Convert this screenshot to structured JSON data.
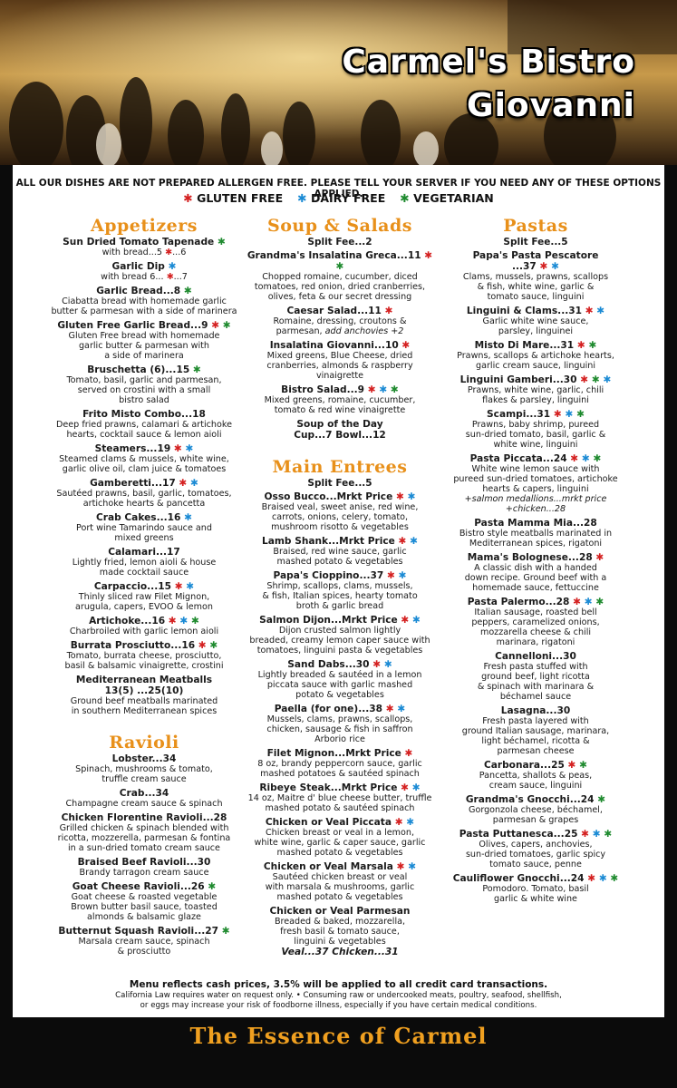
{
  "header": {
    "title_lines": [
      "Carmel's Bistro",
      "Giovanni"
    ]
  },
  "notice": "ALL OUR DISHES ARE NOT PREPARED ALLERGEN FREE. PLEASE TELL YOUR SERVER IF YOU NEED ANY OF THESE OPTIONS APPLIED.",
  "legend": [
    {
      "symbol": "✱",
      "label": "GLUTEN FREE",
      "color": "#d42020"
    },
    {
      "symbol": "✱",
      "label": "DAIRY FREE",
      "color": "#1a8ad4"
    },
    {
      "symbol": "✱",
      "label": "VEGETARIAN",
      "color": "#1e8a2e"
    }
  ],
  "columns": [
    {
      "sections": [
        {
          "heading": "Appetizers",
          "items": [
            {
              "name": "Sun Dried Tomato Tapenade",
              "diet": [
                2
              ],
              "lines": [
                [
                  "with bread...5 ",
                  {
                    "mark": 0
                  },
                  "...6"
                ]
              ]
            },
            {
              "name": "Garlic Dip",
              "diet": [
                1
              ],
              "lines": [
                [
                  "with bread 6... ",
                  {
                    "mark": 0
                  },
                  "...7"
                ]
              ]
            },
            {
              "name": "Garlic Bread...8",
              "diet": [
                2
              ],
              "lines": [
                "Ciabatta bread with homemade garlic",
                "butter & parmesan with a side of marinera"
              ]
            },
            {
              "name": "Gluten Free Garlic Bread...9",
              "diet": [
                0,
                2
              ],
              "lines": [
                "Gluten Free bread with homemade",
                "garlic butter & parmesan with",
                "a side of marinera"
              ]
            },
            {
              "name": "Bruschetta (6)...15",
              "diet": [
                2
              ],
              "lines": [
                "Tomato, basil, garlic and parmesan,",
                "served on crostini with a small",
                "bistro salad"
              ]
            },
            {
              "name": "Frito Misto Combo...18",
              "lines": [
                "Deep fried prawns, calamari & artichoke",
                "hearts, cocktail sauce & lemon aioli"
              ]
            },
            {
              "name": "Steamers...19",
              "diet": [
                0,
                1
              ],
              "lines": [
                "Steamed clams & mussels, white wine,",
                "garlic olive oil, clam juice & tomatoes"
              ]
            },
            {
              "name": "Gamberetti...17",
              "diet": [
                0,
                1
              ],
              "lines": [
                "Sautéed prawns, basil, garlic, tomatoes,",
                "artichoke hearts & pancetta"
              ]
            },
            {
              "name": "Crab Cakes...16",
              "diet": [
                1
              ],
              "lines": [
                "Port wine Tamarindo sauce and",
                "mixed greens"
              ]
            },
            {
              "name": "Calamari...17",
              "lines": [
                "Lightly fried, lemon aioli & house",
                "made cocktail sauce"
              ]
            },
            {
              "name": "Carpaccio...15",
              "diet": [
                0,
                1
              ],
              "lines": [
                "Thinly sliced raw Filet Mignon,",
                "arugula, capers, EVOO & lemon"
              ]
            },
            {
              "name": "Artichoke...16",
              "diet": [
                0,
                1,
                2
              ],
              "lines": [
                "Charbroiled with garlic lemon aioli"
              ]
            },
            {
              "name": "Burrata Prosciutto...16",
              "diet": [
                0,
                2
              ],
              "lines": [
                "Tomato, burrata cheese, prosciutto,",
                "basil & balsamic vinaigrette, crostini"
              ]
            },
            {
              "name": "Mediterranean Meatballs",
              "price": "13(5) ...25(10)",
              "lines": [
                "Ground beef meatballs marinated",
                "in southern Mediterranean spices"
              ]
            }
          ]
        },
        {
          "heading": "Ravioli",
          "items": [
            {
              "name": "Lobster...34",
              "lines": [
                "Spinach, mushrooms & tomato,",
                "truffle cream sauce"
              ]
            },
            {
              "name": "Crab...34",
              "lines": [
                "Champagne cream sauce & spinach"
              ]
            },
            {
              "name": "Chicken Florentine Ravioli...28",
              "lines": [
                "Grilled chicken & spinach blended with",
                "ricotta, mozzerella, parmesan & fontina",
                "in a sun-dried tomato cream sauce"
              ]
            },
            {
              "name": "Braised Beef Ravioli...30",
              "lines": [
                "Brandy tarragon cream sauce"
              ]
            },
            {
              "name": "Goat Cheese Ravioli...26",
              "diet": [
                2
              ],
              "lines": [
                "Goat cheese & roasted vegetable",
                "Brown butter basil sauce, toasted",
                "almonds & balsamic glaze"
              ]
            },
            {
              "name": "Butternut Squash Ravioli...27",
              "diet": [
                2
              ],
              "lines": [
                "Marsala cream sauce, spinach",
                "& prosciutto"
              ]
            }
          ]
        }
      ]
    },
    {
      "sections": [
        {
          "heading": "Soup & Salads",
          "note": "Split Fee...2",
          "items": [
            {
              "name": "Grandma's Insalatina Greca...11",
              "diet": [
                0,
                2
              ],
              "lines": [
                "Chopped romaine, cucumber, diced",
                "tomatoes, red onion, dried cranberries,",
                "olives, feta & our secret dressing"
              ]
            },
            {
              "name": "Caesar Salad...11",
              "diet": [
                0
              ],
              "lines": [
                "Romaine, dressing, croutons &",
                [
                  "parmesan, ",
                  {
                    "em": "add anchovies +2"
                  }
                ]
              ]
            },
            {
              "name": "Insalatina Giovanni...10",
              "diet": [
                0
              ],
              "lines": [
                "Mixed greens, Blue Cheese, dried",
                "cranberries, almonds & raspberry",
                "vinaigrette"
              ]
            },
            {
              "name": "Bistro Salad...9",
              "diet": [
                0,
                1,
                2
              ],
              "lines": [
                "Mixed greens, romaine, cucumber,",
                "tomato & red wine vinaigrette"
              ]
            },
            {
              "name": "Soup of the Day",
              "price": "Cup...7  Bowl...12"
            }
          ]
        },
        {
          "heading": "Main Entrees",
          "note": "Split Fee...5",
          "items": [
            {
              "name": "Osso Bucco...Mrkt Price",
              "diet": [
                0,
                1
              ],
              "lines": [
                "Braised veal, sweet anise, red wine,",
                "carrots, onions, celery, tomato,",
                "mushroom risotto & vegetables"
              ]
            },
            {
              "name": "Lamb Shank...Mrkt Price",
              "diet": [
                0,
                1
              ],
              "lines": [
                "Braised, red wine sauce, garlic",
                "mashed potato & vegetables"
              ]
            },
            {
              "name": "Papa's Cioppino...37",
              "diet": [
                0,
                1
              ],
              "lines": [
                "Shrimp, scallops, clams, mussels,",
                "& fish, Italian spices, hearty tomato",
                "broth & garlic bread"
              ]
            },
            {
              "name": "Salmon Dijon...Mrkt Price",
              "diet": [
                0,
                1
              ],
              "lines": [
                "Dijon crusted salmon lightly",
                "breaded, creamy lemon caper sauce with",
                "tomatoes, linguini pasta & vegetables"
              ]
            },
            {
              "name": "Sand Dabs...30",
              "diet": [
                0,
                1
              ],
              "lines": [
                "Lightly breaded & sautéed in a lemon",
                "piccata sauce with garlic mashed",
                "potato & vegetables"
              ]
            },
            {
              "name": "Paella (for one)...38",
              "diet": [
                0,
                1
              ],
              "lines": [
                "Mussels, clams, prawns, scallops,",
                "chicken, sausage & fish in saffron",
                "Arborio rice"
              ]
            },
            {
              "name": "Filet Mignon...Mrkt Price",
              "diet": [
                0
              ],
              "lines": [
                "8 oz, brandy peppercorn sauce, garlic",
                "mashed potatoes & sautéed spinach"
              ]
            },
            {
              "name": "Ribeye Steak...Mrkt Price",
              "diet": [
                0,
                1
              ],
              "lines": [
                "14 oz, Maitre d' blue cheese butter, truffle",
                "mashed potato & sautéed spinach"
              ]
            },
            {
              "name": "Chicken or Veal Piccata",
              "diet": [
                0,
                1
              ],
              "lines": [
                "Chicken breast or veal in a lemon,",
                "white wine, garlic & caper sauce, garlic",
                "mashed potato & vegetables"
              ]
            },
            {
              "name": "Chicken or Veal Marsala",
              "diet": [
                0,
                1
              ],
              "lines": [
                "Sautéed chicken breast or veal",
                "with marsala & mushrooms, garlic",
                "mashed potato & vegetables"
              ]
            },
            {
              "name": "Chicken or Veal Parmesan",
              "lines": [
                "Breaded & baked, mozzarella,",
                "fresh basil & tomato sauce,",
                "linguini & vegetables"
              ],
              "tail": "Veal...37  Chicken...31"
            }
          ]
        }
      ]
    },
    {
      "sections": [
        {
          "heading": "Pastas",
          "note": "Split Fee...5",
          "items": [
            {
              "name": "Papa's Pasta Pescatore",
              "price": "...37",
              "diet": [
                0,
                1
              ],
              "lines": [
                "Clams, mussels, prawns, scallops",
                "& fish, white wine, garlic &",
                "tomato sauce, linguini"
              ]
            },
            {
              "name": "Linguini & Clams...31",
              "diet": [
                0,
                1
              ],
              "lines": [
                "Garlic white wine sauce,",
                "parsley, linguinei"
              ]
            },
            {
              "name": "Misto Di Mare...31",
              "diet": [
                0,
                2
              ],
              "lines": [
                "Prawns, scallops & artichoke hearts,",
                "garlic cream sauce, linguini"
              ]
            },
            {
              "name": "Linguini Gamberi...30",
              "diet": [
                0,
                2,
                1
              ],
              "lines": [
                "Prawns, white wine, garlic, chili",
                "flakes & parsley, linguini"
              ]
            },
            {
              "name": "Scampi...31",
              "diet": [
                0,
                1,
                2
              ],
              "lines": [
                "Prawns, baby shrimp, pureed",
                "sun-dried tomato, basil, garlic &",
                "white wine, linguini"
              ]
            },
            {
              "name": "Pasta Piccata...24",
              "diet": [
                0,
                1,
                2
              ],
              "lines": [
                "White wine lemon sauce with",
                "pureed sun-dried tomatoes, artichoke",
                "hearts & capers, linguini",
                [
                  {
                    "em": "+salmon medallions...mrkt price"
                  }
                ],
                [
                  {
                    "em": "+chicken...28"
                  }
                ]
              ]
            },
            {
              "name": "Pasta Mamma Mia...28",
              "lines": [
                "Bistro style meatballs marinated in",
                "Mediterranean spices, rigatoni"
              ]
            },
            {
              "name": "Mama's Bolognese...28",
              "diet": [
                0
              ],
              "lines": [
                "A classic dish with a handed",
                "down recipe. Ground beef with a",
                "homemade sauce, fettuccine"
              ]
            },
            {
              "name": "Pasta Palermo...28",
              "diet": [
                0,
                1,
                2
              ],
              "lines": [
                "Italian sausage, roasted bell",
                "peppers, caramelized onions,",
                "mozzarella cheese & chili",
                "marinara, rigatoni"
              ]
            },
            {
              "name": "Cannelloni...30",
              "lines": [
                "Fresh pasta stuffed with",
                "ground beef, light ricotta",
                "& spinach with marinara &",
                "béchamel sauce"
              ]
            },
            {
              "name": "Lasagna...30",
              "lines": [
                "Fresh pasta layered with",
                "ground Italian sausage, marinara,",
                "light béchamel, ricotta &",
                "parmesan cheese"
              ]
            },
            {
              "name": "Carbonara...25",
              "diet": [
                0,
                2
              ],
              "lines": [
                "Pancetta, shallots & peas,",
                "cream sauce, linguini"
              ]
            },
            {
              "name": "Grandma's Gnocchi...24",
              "diet": [
                2
              ],
              "lines": [
                "Gorgonzola cheese, béchamel,",
                "parmesan & grapes"
              ]
            },
            {
              "name": "Pasta Puttanesca...25",
              "diet": [
                0,
                1,
                2
              ],
              "lines": [
                "Olives, capers, anchovies,",
                "sun-dried tomatoes, garlic spicy",
                "tomato sauce, penne"
              ]
            },
            {
              "name": "Cauliflower Gnocchi...24",
              "diet": [
                0,
                1,
                2
              ],
              "lines": [
                "Pomodoro. Tomato, basil",
                "garlic & white wine"
              ]
            }
          ]
        }
      ]
    }
  ],
  "footer": {
    "cash_note": "Menu reflects cash prices, 3.5% will be applied to all credit card transactions.",
    "small_lines": [
      "California Law requires water on request only.  •  Consuming raw or undercooked meats, poultry, seafood, shellfish,",
      "or eggs may increase your risk of foodborne illness, especially if you have certain medical conditions."
    ]
  },
  "tagline": "The Essence of Carmel"
}
